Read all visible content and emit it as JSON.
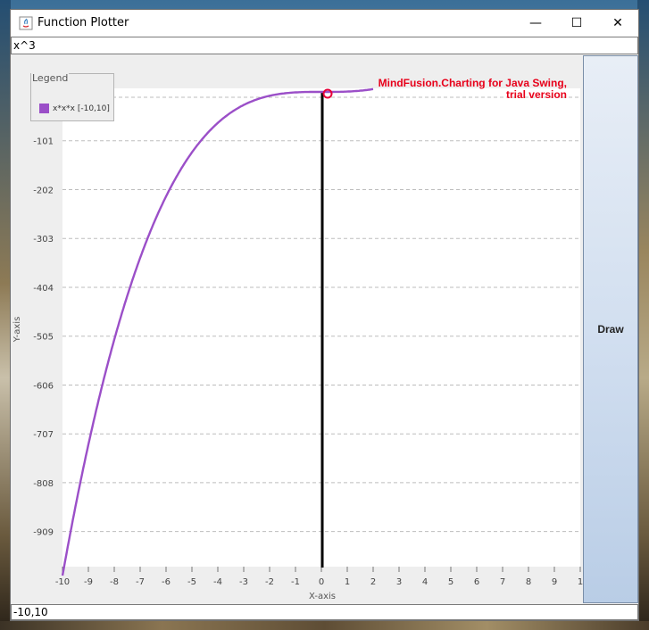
{
  "window": {
    "title": "Function Plotter",
    "controls": {
      "minimize": "—",
      "maximize": "☐",
      "close": "✕"
    }
  },
  "inputs": {
    "function_value": "x^3",
    "range_value": "-10,10"
  },
  "draw_button": {
    "label": "Draw"
  },
  "watermark": {
    "line1": "MindFusion.Charting for Java Swing,",
    "line2": "trial version"
  },
  "legend": {
    "title": "Legend",
    "entry": "x*x*x [-10,10]"
  },
  "chart_data": {
    "type": "line",
    "xlabel": "X-axis",
    "ylabel": "Y-axis",
    "x_ticks": [
      "-10",
      "-9",
      "-8",
      "-7",
      "-6",
      "-5",
      "-4",
      "-3",
      "-2",
      "-1",
      "0",
      "1",
      "2",
      "3",
      "4",
      "5",
      "6",
      "7",
      "8",
      "9",
      "1"
    ],
    "y_ticks": [
      "-101",
      "-202",
      "-303",
      "-404",
      "-505",
      "-606",
      "-707",
      "-808",
      "-909"
    ],
    "xlim": [
      -10,
      10
    ],
    "ylim": [
      -1000,
      0
    ],
    "grid": "horizontal dashed",
    "series": [
      {
        "name": "x*x*x [-10,10]",
        "x": [
          -10,
          -9,
          -8,
          -7,
          -6,
          -5,
          -4,
          -3,
          -2,
          -1,
          0,
          1,
          2
        ],
        "y": [
          -1000,
          -729,
          -512,
          -343,
          -216,
          -125,
          -64,
          -27,
          -8,
          -1,
          0,
          1,
          8
        ]
      }
    ],
    "colors": {
      "series": "#9b4fc8",
      "axis": "#000000",
      "marker": "#e8003a"
    }
  }
}
